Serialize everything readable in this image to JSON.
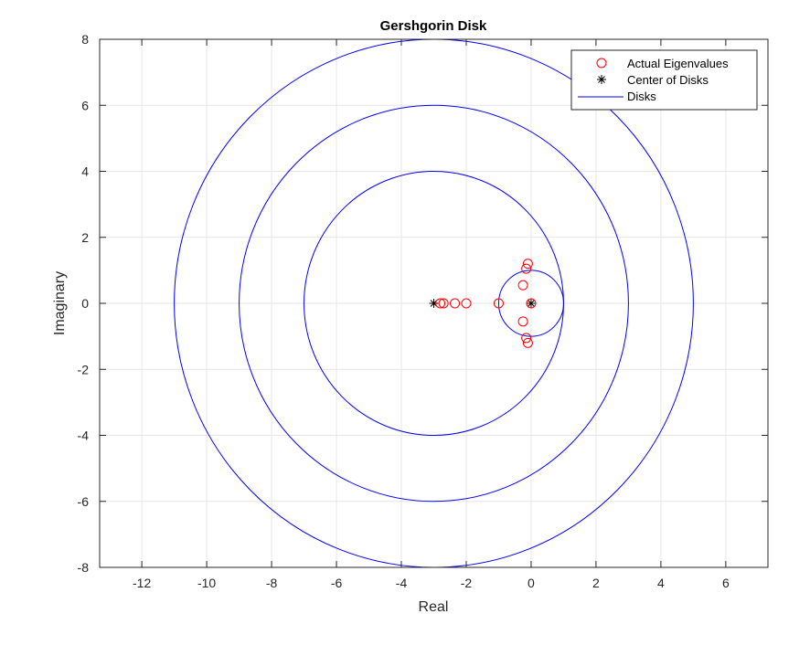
{
  "chart_data": {
    "type": "scatter",
    "title": "Gershgorin Disk",
    "xlabel": "Real",
    "ylabel": "Imaginary",
    "xlim": [
      -13.3,
      7.3
    ],
    "ylim": [
      -8,
      8
    ],
    "xticks": [
      -12,
      -10,
      -8,
      -6,
      -4,
      -2,
      0,
      2,
      4,
      6
    ],
    "yticks": [
      -8,
      -6,
      -4,
      -2,
      0,
      2,
      4,
      6,
      8
    ],
    "grid": true,
    "legend_position": "top-right",
    "colors": {
      "eigenvalues": "#ff0000",
      "centers": "#000000",
      "disks": "#0000ff",
      "grid": "#e6e6e6",
      "axes": "#262626"
    },
    "series": [
      {
        "name": "Actual Eigenvalues",
        "marker": "circle",
        "points": [
          [
            -2.8,
            0
          ],
          [
            -2.7,
            0
          ],
          [
            -2.35,
            0
          ],
          [
            -2.0,
            0
          ],
          [
            -1.0,
            0
          ],
          [
            0.0,
            0
          ],
          [
            -0.25,
            0.55
          ],
          [
            -0.25,
            -0.55
          ],
          [
            -0.15,
            1.05
          ],
          [
            -0.15,
            -1.05
          ],
          [
            -0.1,
            1.2
          ],
          [
            -0.1,
            -1.2
          ]
        ]
      },
      {
        "name": "Center of Disks",
        "marker": "asterisk",
        "points": [
          [
            -3,
            0
          ],
          [
            0,
            0
          ]
        ]
      },
      {
        "name": "Disks",
        "marker": "line",
        "circles": [
          {
            "cx": -3,
            "cy": 0,
            "r": 8
          },
          {
            "cx": -3,
            "cy": 0,
            "r": 6
          },
          {
            "cx": -3,
            "cy": 0,
            "r": 4
          },
          {
            "cx": 0,
            "cy": 0,
            "r": 1
          }
        ]
      }
    ]
  }
}
